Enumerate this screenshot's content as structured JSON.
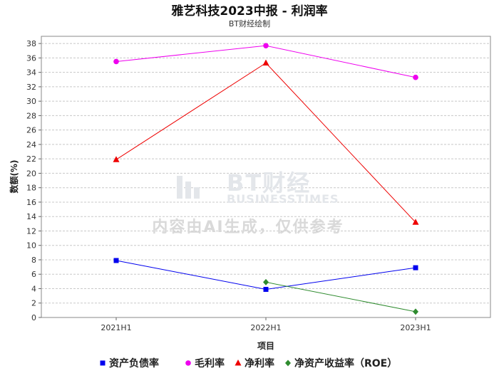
{
  "header": {
    "title": "雅艺科技2023中报 - 利润率",
    "subtitle": "BT财经绘制"
  },
  "watermark": {
    "logo_text": "BT财经",
    "logo_subtext": "BUSINESSTIMES",
    "notice": "内容由AI生成，仅供参考"
  },
  "chart_data": {
    "type": "line",
    "title": "雅艺科技2023中报 - 利润率",
    "subtitle": "BT财经绘制",
    "xlabel": "项目",
    "ylabel": "数额(%)",
    "categories": [
      "2021H1",
      "2022H1",
      "2023H1"
    ],
    "ylim": [
      0,
      39
    ],
    "yticks": [
      0,
      2,
      4,
      6,
      8,
      10,
      12,
      14,
      16,
      18,
      20,
      22,
      24,
      26,
      28,
      30,
      32,
      34,
      36,
      38
    ],
    "grid": true,
    "legend_position": "bottom",
    "series": [
      {
        "name": "资产负债率",
        "color": "#0000ee",
        "marker": "square",
        "values": [
          7.9,
          3.9,
          6.9
        ]
      },
      {
        "name": "毛利率",
        "color": "#ee00ee",
        "marker": "circle",
        "values": [
          35.5,
          37.7,
          33.3
        ]
      },
      {
        "name": "净利率",
        "color": "#ee0000",
        "marker": "triangle",
        "values": [
          21.9,
          35.3,
          13.2
        ]
      },
      {
        "name": "净资产收益率（ROE）",
        "color": "#2e8b2e",
        "marker": "diamond",
        "values": [
          null,
          4.9,
          0.8
        ]
      }
    ]
  }
}
